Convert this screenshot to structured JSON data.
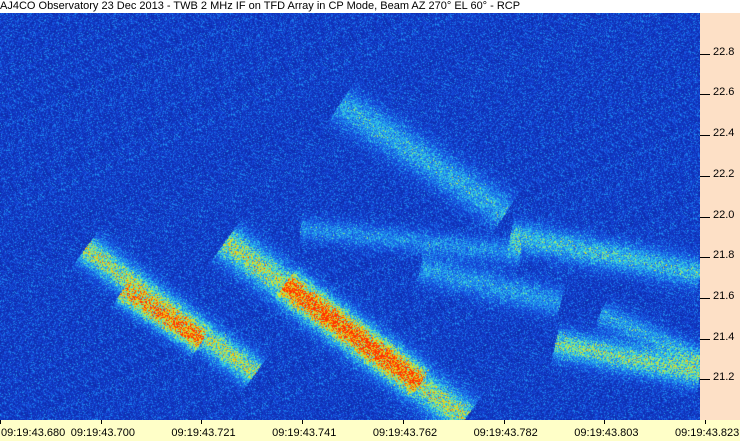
{
  "title": "AJ4CO Observatory 23 Dec 2013 - TWB 2 MHz IF on TFD Array in CP Mode, Beam AZ 270° EL 60° - RCP",
  "chart_data": {
    "type": "heatmap",
    "title": "AJ4CO Observatory 23 Dec 2013 - TWB 2 MHz IF on TFD Array in CP Mode, Beam AZ 270° EL 60° - RCP",
    "x_tick_labels": [
      "09:19:43.680",
      "09:19:43.700",
      "09:19:43.721",
      "09:19:43.741",
      "09:19:43.762",
      "09:19:43.782",
      "09:19:43.803",
      "09:19:43.823"
    ],
    "y_tick_labels": [
      "22.8",
      "22.6",
      "22.4",
      "22.2",
      "22.0",
      "21.8",
      "21.6",
      "21.4",
      "21.2"
    ],
    "y_ticks": [
      22.8,
      22.6,
      22.4,
      22.2,
      22.0,
      21.8,
      21.6,
      21.4,
      21.2
    ],
    "ylim": [
      21.0,
      23.0
    ],
    "y_axis_position": "right",
    "colormap": [
      "#0a1f9a",
      "#1546d8",
      "#1e8cf0",
      "#38d8e0",
      "#c8f040",
      "#ffb000",
      "#ff3000"
    ],
    "background_color": "#0b2aa8"
  }
}
